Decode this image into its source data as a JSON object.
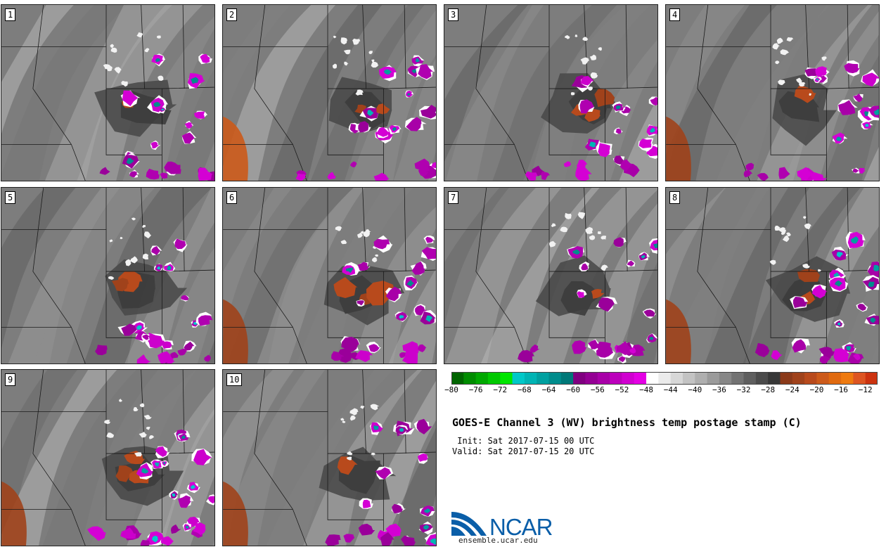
{
  "panels": [
    {
      "label": "1"
    },
    {
      "label": "2"
    },
    {
      "label": "3"
    },
    {
      "label": "4"
    },
    {
      "label": "5"
    },
    {
      "label": "6"
    },
    {
      "label": "7"
    },
    {
      "label": "8"
    },
    {
      "label": "9"
    },
    {
      "label": "10"
    }
  ],
  "colorbar": {
    "min": -80,
    "max": -10,
    "step": 2,
    "ticks": [
      "−80",
      "−76",
      "−72",
      "−68",
      "−64",
      "−60",
      "−56",
      "−52",
      "−48",
      "−44",
      "−40",
      "−36",
      "−32",
      "−28",
      "−24",
      "−20",
      "−16",
      "−12"
    ],
    "colors": [
      "#006400",
      "#008c00",
      "#00a800",
      "#00c800",
      "#00e600",
      "#00c8c8",
      "#00b4b4",
      "#00a0a0",
      "#008c8c",
      "#007878",
      "#800080",
      "#940094",
      "#a800a8",
      "#bc00bc",
      "#d000d0",
      "#e400e4",
      "#ffffff",
      "#ebebeb",
      "#d7d7d7",
      "#c3c3c3",
      "#afafaf",
      "#9b9b9b",
      "#878787",
      "#737373",
      "#5f5f5f",
      "#4b4b4b",
      "#373737",
      "#8b3a1a",
      "#a0421b",
      "#b84a1c",
      "#cc5a1a",
      "#e06a10",
      "#ee7a10",
      "#dd5522",
      "#cc3310"
    ]
  },
  "title": "GOES-E Channel 3 (WV) brightness temp postage stamp (C)",
  "init": " Init: Sat 2017-07-15 00 UTC",
  "valid": "Valid: Sat 2017-07-15 20 UTC",
  "logo": {
    "text": "NCAR",
    "url": "ensemble.ucar.edu",
    "color": "#0a5ea8"
  }
}
